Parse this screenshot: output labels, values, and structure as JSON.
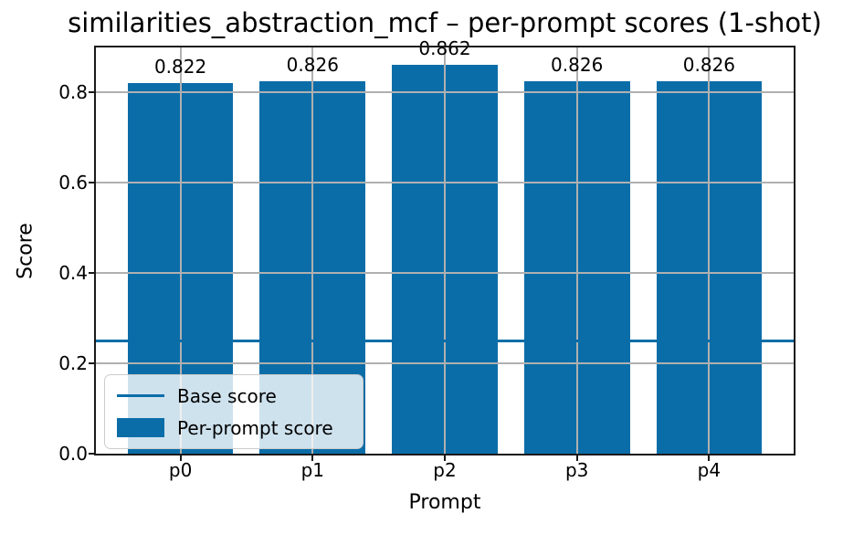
{
  "chart_data": {
    "type": "bar",
    "title": "similarities_abstraction_mcf – per-prompt scores (1-shot)",
    "xlabel": "Prompt",
    "ylabel": "Score",
    "categories": [
      "p0",
      "p1",
      "p2",
      "p3",
      "p4"
    ],
    "values": [
      0.822,
      0.826,
      0.862,
      0.826,
      0.826
    ],
    "bar_labels": [
      "0.822",
      "0.826",
      "0.862",
      "0.826",
      "0.826"
    ],
    "base_score": 0.25,
    "ylim": [
      0,
      0.9
    ],
    "yticks": [
      0.0,
      0.2,
      0.4,
      0.6,
      0.8
    ],
    "ytick_labels": [
      "0.0",
      "0.2",
      "0.4",
      "0.6",
      "0.8"
    ],
    "grid": true,
    "grid_above_bars": true,
    "bar_width_fraction": 0.8,
    "legend": {
      "position": "lower left",
      "entries": [
        {
          "label": "Base score",
          "type": "line"
        },
        {
          "label": "Per-prompt score",
          "type": "patch"
        }
      ]
    },
    "colors": {
      "bar": "#0b6da8",
      "base_line": "#0b6da8",
      "grid": "#b0b0b0",
      "spine": "#1a1a1a",
      "text": "#000000",
      "legend_bg": "rgba(255,255,255,0.8)",
      "legend_border": "#cccccc"
    }
  }
}
